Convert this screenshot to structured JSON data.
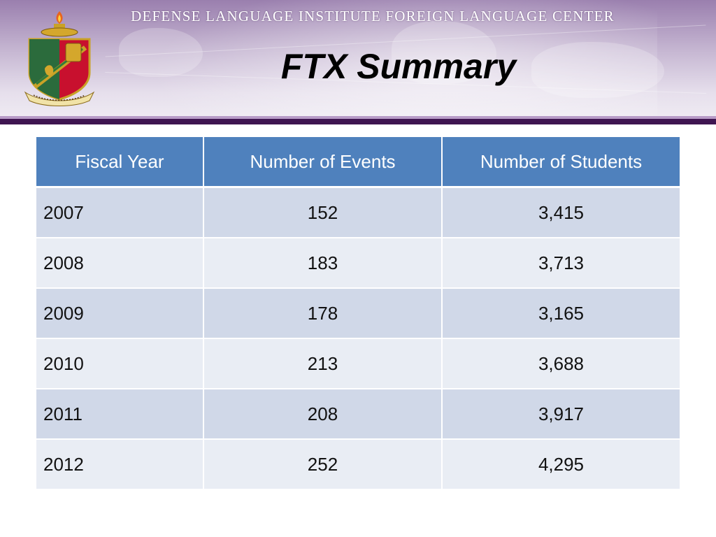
{
  "header": {
    "organization": "DEFENSE LANGUAGE INSTITUTE FOREIGN LANGUAGE CENTER",
    "title": "FTX Summary",
    "logo_icon": "dli-crest-icon",
    "logo_banner_text": "DEFENSE LANGUAGE INSTITUTE"
  },
  "table": {
    "headers": [
      "Fiscal Year",
      "Number of Events",
      "Number of Students"
    ],
    "rows": [
      [
        "2007",
        "152",
        "3,415"
      ],
      [
        "2008",
        "183",
        "3,713"
      ],
      [
        "2009",
        "178",
        "3,165"
      ],
      [
        "2010",
        "213",
        "3,688"
      ],
      [
        "2011",
        "208",
        "3,917"
      ],
      [
        "2012",
        "252",
        "4,295"
      ]
    ]
  },
  "colors": {
    "header_fill": "#4f81bd",
    "row_band_dark": "#d0d8e8",
    "row_band_light": "#e9edf4",
    "accent_bar": "#3f1551"
  }
}
